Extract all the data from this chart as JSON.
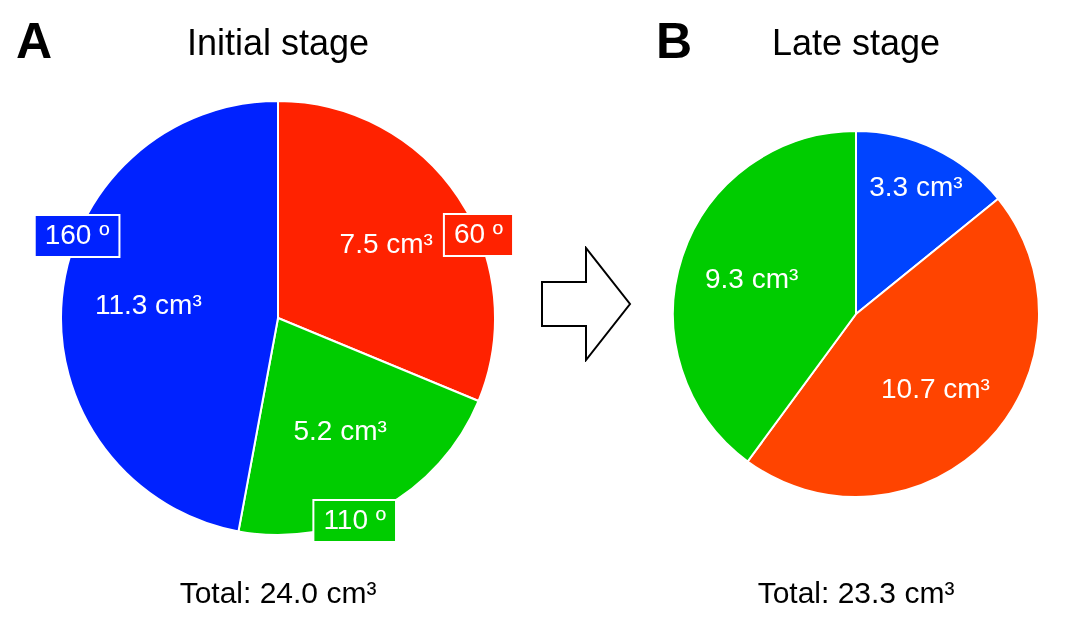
{
  "chart_data": [
    {
      "type": "pie",
      "title": "Initial stage",
      "categories": [
        "60 º",
        "110 º",
        "160 º"
      ],
      "values": [
        7.5,
        5.2,
        11.3
      ],
      "colors": [
        "#ff2200",
        "#00cc00",
        "#0022ff"
      ],
      "value_labels": [
        "7.5 cm³",
        "5.2 cm³",
        "11.3 cm³"
      ],
      "annotations": [
        "A",
        "Total: 24.0 cm³"
      ]
    },
    {
      "type": "pie",
      "title": "Late stage",
      "categories": [
        null,
        null,
        null
      ],
      "values": [
        3.3,
        10.7,
        9.3
      ],
      "colors": [
        "#0044ff",
        "#ff4400",
        "#00cc00"
      ],
      "value_labels": [
        "3.3 cm³",
        "10.7 cm³",
        "9.3 cm³"
      ],
      "annotations": [
        "B",
        "Total: 23.3 cm³"
      ]
    }
  ]
}
